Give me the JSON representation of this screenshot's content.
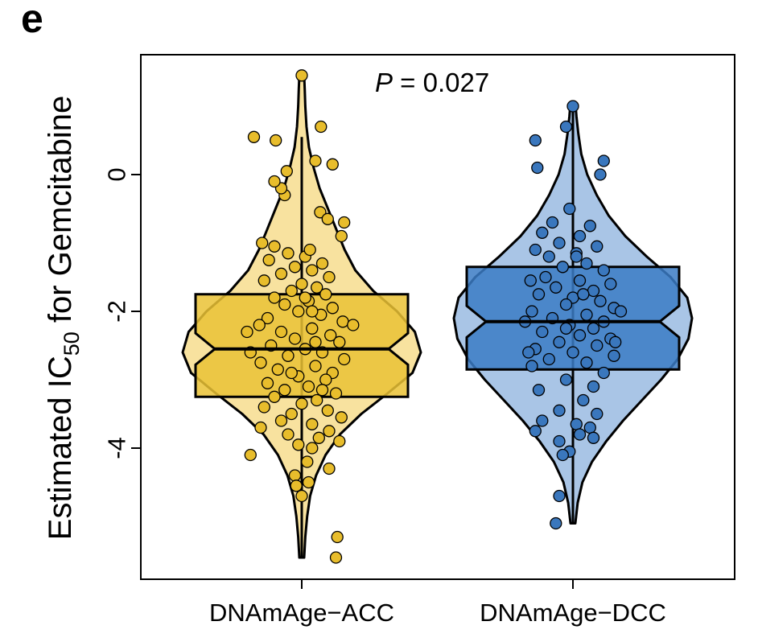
{
  "panel_label": "e",
  "chart_data": {
    "type": "violin",
    "title": "",
    "xlabel": "",
    "ylabel_main": "Estimated IC",
    "ylabel_sub": "50",
    "ylabel_rest": " for Gemcitabine",
    "annotation": {
      "p_symbol": "P",
      "p_text": " = 0.027"
    },
    "ylim": [
      -6.0,
      1.8
    ],
    "yticks": [
      0,
      -2,
      -4
    ],
    "ytick_labels": [
      "0",
      "-2",
      "-4"
    ],
    "categories": [
      "DNAmAge−ACC",
      "DNAmAge−DCC"
    ],
    "groups": [
      {
        "name": "DNAmAge−ACC",
        "fill": "#f8e29f",
        "box_fill": "#eac235",
        "point_fill": "#e8bd2c",
        "stats": {
          "min": -5.6,
          "q1": -3.25,
          "median": -2.55,
          "q3": -1.75,
          "max": 1.45,
          "whisker_low": -5.6,
          "whisker_high": 0.55,
          "notch_low": -2.78,
          "notch_high": -2.32
        },
        "density": [
          [
            -5.6,
            0.02
          ],
          [
            -5.3,
            0.03
          ],
          [
            -5.0,
            0.045
          ],
          [
            -4.7,
            0.07
          ],
          [
            -4.4,
            0.12
          ],
          [
            -4.1,
            0.2
          ],
          [
            -3.8,
            0.32
          ],
          [
            -3.5,
            0.5
          ],
          [
            -3.2,
            0.72
          ],
          [
            -2.9,
            0.93
          ],
          [
            -2.6,
            1.0
          ],
          [
            -2.3,
            0.95
          ],
          [
            -2.0,
            0.8
          ],
          [
            -1.7,
            0.6
          ],
          [
            -1.4,
            0.45
          ],
          [
            -1.1,
            0.36
          ],
          [
            -0.8,
            0.29
          ],
          [
            -0.5,
            0.22
          ],
          [
            -0.2,
            0.15
          ],
          [
            0.1,
            0.1
          ],
          [
            0.4,
            0.06
          ],
          [
            0.7,
            0.04
          ],
          [
            1.0,
            0.03
          ],
          [
            1.25,
            0.025
          ],
          [
            1.45,
            0.02
          ]
        ],
        "points": [
          [
            1.45,
            0.0
          ],
          [
            0.55,
            -0.7
          ],
          [
            0.5,
            -0.38
          ],
          [
            0.7,
            0.28
          ],
          [
            0.2,
            0.2
          ],
          [
            0.15,
            0.45
          ],
          [
            0.05,
            -0.22
          ],
          [
            -0.3,
            -0.25
          ],
          [
            -0.55,
            0.27
          ],
          [
            -0.65,
            0.38
          ],
          [
            -0.7,
            0.62
          ],
          [
            -0.9,
            0.58
          ],
          [
            -1.0,
            -0.58
          ],
          [
            -1.05,
            -0.4
          ],
          [
            -1.15,
            -0.2
          ],
          [
            -1.2,
            0.05
          ],
          [
            -1.25,
            -0.48
          ],
          [
            -1.3,
            0.3
          ],
          [
            -1.35,
            -0.1
          ],
          [
            -1.4,
            0.15
          ],
          [
            -1.45,
            -0.3
          ],
          [
            -1.5,
            0.4
          ],
          [
            -1.55,
            -0.55
          ],
          [
            -1.6,
            0.0
          ],
          [
            -1.65,
            0.22
          ],
          [
            -1.7,
            -0.15
          ],
          [
            -1.75,
            0.35
          ],
          [
            -1.8,
            -0.4
          ],
          [
            -1.85,
            0.1
          ],
          [
            -1.9,
            -0.25
          ],
          [
            -1.95,
            0.45
          ],
          [
            -2.0,
            -0.05
          ],
          [
            -2.05,
            0.28
          ],
          [
            -2.1,
            -0.5
          ],
          [
            -2.15,
            0.6
          ],
          [
            -2.2,
            -0.62
          ],
          [
            -2.25,
            0.15
          ],
          [
            -2.3,
            -0.3
          ],
          [
            -2.35,
            0.42
          ],
          [
            -2.4,
            -0.1
          ],
          [
            -2.45,
            0.55
          ],
          [
            -2.5,
            -0.45
          ],
          [
            -2.55,
            0.05
          ],
          [
            -2.6,
            0.3
          ],
          [
            -2.65,
            -0.2
          ],
          [
            -2.7,
            0.62
          ],
          [
            -2.75,
            -0.6
          ],
          [
            -2.8,
            0.2
          ],
          [
            -2.85,
            -0.35
          ],
          [
            -2.9,
            0.45
          ],
          [
            -2.95,
            -0.05
          ],
          [
            -3.0,
            0.35
          ],
          [
            -3.05,
            -0.5
          ],
          [
            -3.1,
            0.1
          ],
          [
            -3.15,
            -0.25
          ],
          [
            -3.2,
            0.5
          ],
          [
            -3.25,
            -0.4
          ],
          [
            -3.3,
            0.22
          ],
          [
            -3.35,
            0.0
          ],
          [
            -3.4,
            -0.55
          ],
          [
            -3.45,
            0.38
          ],
          [
            -3.5,
            -0.15
          ],
          [
            -3.55,
            0.58
          ],
          [
            -3.6,
            -0.3
          ],
          [
            -3.65,
            0.15
          ],
          [
            -3.7,
            -0.6
          ],
          [
            -3.75,
            0.4
          ],
          [
            -3.8,
            -0.2
          ],
          [
            -3.85,
            0.25
          ],
          [
            -3.9,
            0.55
          ],
          [
            -3.95,
            -0.05
          ],
          [
            -4.0,
            0.15
          ],
          [
            -4.1,
            -0.75
          ],
          [
            -4.2,
            0.08
          ],
          [
            -4.3,
            0.4
          ],
          [
            -4.4,
            -0.1
          ],
          [
            -4.5,
            0.1
          ],
          [
            -4.55,
            -0.08
          ],
          [
            -4.7,
            0.0
          ],
          [
            -2.3,
            -0.8
          ],
          [
            -2.6,
            -0.75
          ],
          [
            -2.2,
            0.75
          ],
          [
            -1.1,
            0.12
          ],
          [
            -2.0,
            0.15
          ],
          [
            -1.8,
            0.05
          ],
          [
            -2.45,
            0.2
          ],
          [
            -3.15,
            0.3
          ],
          [
            -2.9,
            -0.15
          ],
          [
            -5.3,
            0.52
          ],
          [
            -5.6,
            0.5
          ],
          [
            -0.2,
            -0.3
          ],
          [
            -0.1,
            -0.4
          ]
        ]
      },
      {
        "name": "DNAmAge−DCC",
        "fill": "#a9c5e6",
        "box_fill": "#3b7bc4",
        "point_fill": "#3a77bd",
        "stats": {
          "min": -5.1,
          "q1": -2.85,
          "median": -2.15,
          "q3": -1.35,
          "max": 1.05,
          "whisker_low": -5.1,
          "whisker_high": 1.05,
          "notch_low": -2.38,
          "notch_high": -1.92
        },
        "density": [
          [
            -5.1,
            0.02
          ],
          [
            -4.8,
            0.04
          ],
          [
            -4.5,
            0.08
          ],
          [
            -4.2,
            0.16
          ],
          [
            -3.9,
            0.28
          ],
          [
            -3.6,
            0.42
          ],
          [
            -3.3,
            0.58
          ],
          [
            -3.0,
            0.74
          ],
          [
            -2.7,
            0.88
          ],
          [
            -2.4,
            0.97
          ],
          [
            -2.1,
            1.0
          ],
          [
            -1.8,
            0.96
          ],
          [
            -1.5,
            0.82
          ],
          [
            -1.2,
            0.62
          ],
          [
            -0.9,
            0.44
          ],
          [
            -0.6,
            0.3
          ],
          [
            -0.3,
            0.2
          ],
          [
            0.0,
            0.12
          ],
          [
            0.3,
            0.07
          ],
          [
            0.6,
            0.045
          ],
          [
            0.85,
            0.03
          ],
          [
            1.05,
            0.02
          ]
        ],
        "points": [
          [
            1.0,
            0.0
          ],
          [
            0.7,
            -0.1
          ],
          [
            0.5,
            -0.55
          ],
          [
            0.2,
            0.45
          ],
          [
            0.1,
            -0.52
          ],
          [
            0.0,
            0.4
          ],
          [
            -0.5,
            -0.05
          ],
          [
            -0.7,
            -0.3
          ],
          [
            -0.75,
            0.25
          ],
          [
            -0.85,
            -0.45
          ],
          [
            -0.9,
            0.1
          ],
          [
            -1.0,
            -0.2
          ],
          [
            -1.05,
            0.35
          ],
          [
            -1.1,
            -0.55
          ],
          [
            -1.15,
            0.05
          ],
          [
            -1.2,
            -0.35
          ],
          [
            -1.3,
            0.2
          ],
          [
            -1.35,
            -0.15
          ],
          [
            -1.4,
            0.45
          ],
          [
            -1.5,
            -0.4
          ],
          [
            -1.55,
            0.1
          ],
          [
            -1.6,
            0.55
          ],
          [
            -1.65,
            -0.25
          ],
          [
            -1.7,
            0.3
          ],
          [
            -1.75,
            -0.5
          ],
          [
            -1.8,
            0.0
          ],
          [
            -1.85,
            0.4
          ],
          [
            -1.9,
            -0.1
          ],
          [
            -1.95,
            0.6
          ],
          [
            -2.0,
            -0.6
          ],
          [
            -2.05,
            0.2
          ],
          [
            -2.1,
            -0.3
          ],
          [
            -2.15,
            0.45
          ],
          [
            -2.2,
            -0.05
          ],
          [
            -2.25,
            0.3
          ],
          [
            -2.3,
            -0.45
          ],
          [
            -2.35,
            0.1
          ],
          [
            -2.4,
            0.55
          ],
          [
            -2.45,
            -0.2
          ],
          [
            -2.5,
            0.35
          ],
          [
            -2.55,
            -0.55
          ],
          [
            -2.6,
            0.0
          ],
          [
            -2.65,
            0.6
          ],
          [
            -2.7,
            -0.35
          ],
          [
            -2.75,
            0.2
          ],
          [
            -2.8,
            -0.6
          ],
          [
            -2.9,
            0.45
          ],
          [
            -3.0,
            -0.1
          ],
          [
            -3.1,
            0.3
          ],
          [
            -3.15,
            -0.5
          ],
          [
            -3.3,
            0.15
          ],
          [
            -3.45,
            -0.2
          ],
          [
            -3.5,
            0.35
          ],
          [
            -3.6,
            -0.45
          ],
          [
            -3.65,
            0.05
          ],
          [
            -3.7,
            0.25
          ],
          [
            -3.75,
            -0.55
          ],
          [
            -3.8,
            0.1
          ],
          [
            -3.85,
            0.3
          ],
          [
            -3.9,
            -0.2
          ],
          [
            -4.05,
            -0.05
          ],
          [
            -4.1,
            -0.15
          ],
          [
            -4.7,
            -0.2
          ],
          [
            -5.1,
            -0.25
          ],
          [
            -2.15,
            -0.7
          ],
          [
            -2.0,
            0.7
          ],
          [
            -2.45,
            0.62
          ],
          [
            -1.55,
            -0.62
          ],
          [
            -2.6,
            -0.65
          ],
          [
            -1.2,
            0.05
          ],
          [
            -2.25,
            -0.1
          ],
          [
            -1.75,
            0.15
          ]
        ]
      }
    ]
  }
}
